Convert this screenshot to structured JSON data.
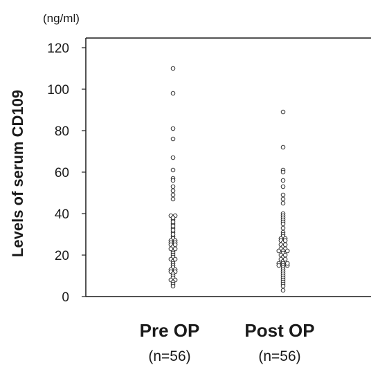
{
  "chart_data": {
    "type": "scatter",
    "unit_label": "(ng/ml)",
    "ylabel": "Levels of serum CD109",
    "ylim": [
      0,
      120
    ],
    "yticks": [
      0,
      20,
      40,
      60,
      80,
      100,
      120
    ],
    "grid": false,
    "categories": [
      "Pre OP",
      "Post OP"
    ],
    "category_sublabels": [
      "(n=56)",
      "(n=56)"
    ],
    "series": [
      {
        "values": [
          110,
          98,
          81,
          76,
          67,
          61,
          57,
          56,
          53,
          51,
          49,
          47,
          39,
          39,
          37,
          35,
          33,
          31,
          29,
          28,
          27,
          27,
          26,
          26,
          25,
          24,
          22,
          21,
          20,
          19,
          18,
          17,
          16,
          15,
          14,
          13,
          13,
          12,
          12,
          11,
          10,
          9,
          8,
          8,
          7,
          6,
          5,
          38,
          36,
          30,
          23,
          23,
          25,
          34,
          32,
          18
        ]
      },
      {
        "values": [
          89,
          72,
          61,
          60,
          56,
          53,
          49,
          47,
          45,
          40,
          39,
          38,
          37,
          36,
          35,
          33,
          31,
          30,
          29,
          28,
          28,
          27,
          26,
          25,
          24,
          23,
          23,
          22,
          22,
          22,
          21,
          20,
          19,
          18,
          17,
          16,
          16,
          15,
          15,
          15,
          14,
          13,
          12,
          11,
          10,
          9,
          8,
          7,
          6,
          5,
          3,
          27,
          25,
          20,
          18,
          16
        ]
      }
    ]
  }
}
